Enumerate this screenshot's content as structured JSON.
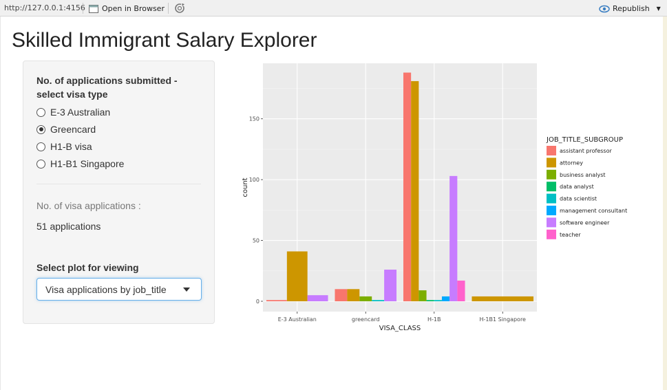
{
  "topbar": {
    "url": "http://127.0.0.1:4156",
    "open_in_browser": "Open in Browser",
    "republish": "Republish"
  },
  "page": {
    "title": "Skilled Immigrant Salary Explorer"
  },
  "sidebar": {
    "visa_label": "No. of applications submitted - select visa type",
    "visa_options": [
      "E-3 Australian",
      "Greencard",
      "H1-B visa",
      "H1-B1 Singapore"
    ],
    "visa_selected": "Greencard",
    "count_label": "No. of visa applications :",
    "count_value": "51 applications",
    "plot_label": "Select plot for viewing",
    "plot_selected": "Visa applications by job_title"
  },
  "chart_data": {
    "type": "bar",
    "xlabel": "VISA_CLASS",
    "ylabel": "count",
    "ylim": [
      0,
      190
    ],
    "yticks": [
      0,
      50,
      100,
      150
    ],
    "categories": [
      "E-3 Australian",
      "greencard",
      "H-1B",
      "H-1B1 Singapore"
    ],
    "legend": {
      "title": "JOB_TITLE_SUBGROUP",
      "position": "right"
    },
    "series": [
      {
        "name": "assistant professor",
        "color": "#F8766D",
        "values": [
          1,
          10,
          188,
          0
        ]
      },
      {
        "name": "attorney",
        "color": "#CD9600",
        "values": [
          41,
          10,
          181,
          4
        ]
      },
      {
        "name": "business analyst",
        "color": "#7CAE00",
        "values": [
          0,
          4,
          9,
          0
        ]
      },
      {
        "name": "data analyst",
        "color": "#00BE67",
        "values": [
          0,
          0,
          1,
          0
        ]
      },
      {
        "name": "data scientist",
        "color": "#00BFC4",
        "values": [
          0,
          1,
          1,
          0
        ]
      },
      {
        "name": "management consultant",
        "color": "#00A9FF",
        "values": [
          0,
          0,
          4,
          0
        ]
      },
      {
        "name": "software engineer",
        "color": "#C77CFF",
        "values": [
          5,
          26,
          103,
          0
        ]
      },
      {
        "name": "teacher",
        "color": "#FF61CC",
        "values": [
          0,
          0,
          17,
          0
        ]
      }
    ]
  }
}
